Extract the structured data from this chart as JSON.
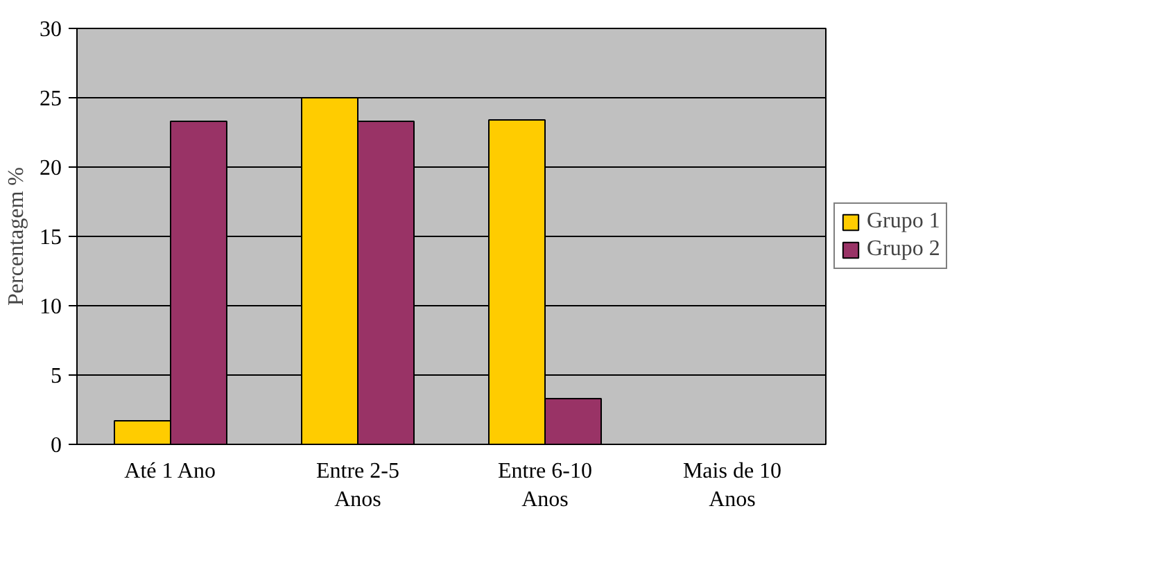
{
  "chart_data": {
    "type": "bar",
    "ylabel": "Percentagem %",
    "categories": [
      "Até 1 Ano",
      "Entre 2-5\nAnos",
      "Entre 6-10\nAnos",
      "Mais de 10\nAnos"
    ],
    "series": [
      {
        "name": "Grupo 1",
        "color": "#ffcc00",
        "values": [
          1.7,
          25,
          23.4,
          0
        ]
      },
      {
        "name": "Grupo 2",
        "color": "#993366",
        "values": [
          23.3,
          23.3,
          3.3,
          0
        ]
      }
    ],
    "ylim": [
      0,
      30
    ],
    "yticks": [
      0,
      5,
      10,
      15,
      20,
      25,
      30
    ],
    "grid": "y",
    "legend": "right"
  }
}
